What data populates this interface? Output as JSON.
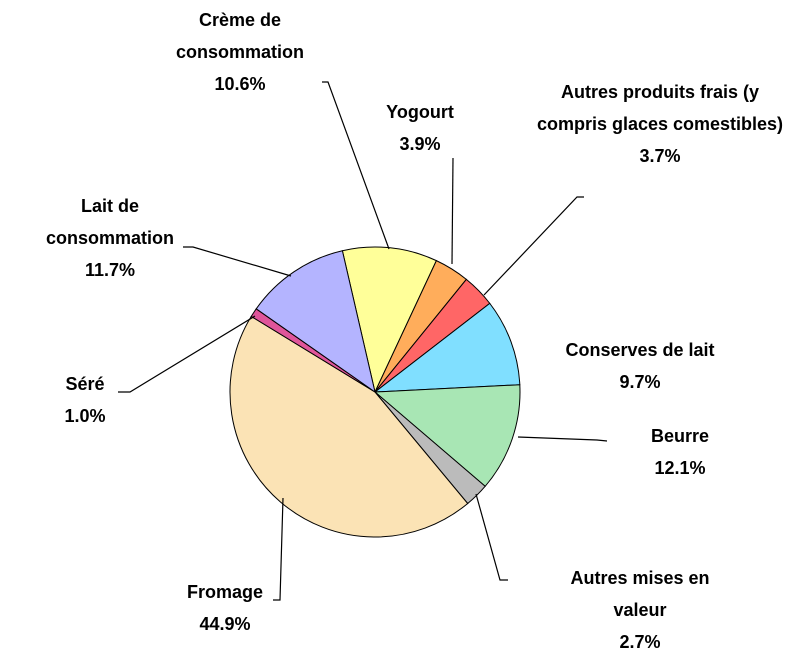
{
  "chart_data": {
    "type": "pie",
    "categories": [
      "Crème de consommation",
      "Yogourt",
      "Autres produits frais (y compris glaces comestibles)",
      "Conserves de lait",
      "Beurre",
      "Autres mises en valeur",
      "Fromage",
      "Séré",
      "Lait de consommation"
    ],
    "values": [
      10.6,
      3.9,
      3.7,
      9.7,
      12.1,
      2.7,
      44.9,
      1.0,
      11.7
    ],
    "value_labels": [
      "10.6%",
      "3.9%",
      "3.7%",
      "9.7%",
      "12.1%",
      "2.7%",
      "44.9%",
      "1.0%",
      "11.7%"
    ],
    "colors": [
      "#ffff99",
      "#ffad5b",
      "#ff6666",
      "#80dfff",
      "#a8e6b4",
      "#bbbbbb",
      "#fbe3b5",
      "#e0559a",
      "#b4b4ff"
    ]
  }
}
